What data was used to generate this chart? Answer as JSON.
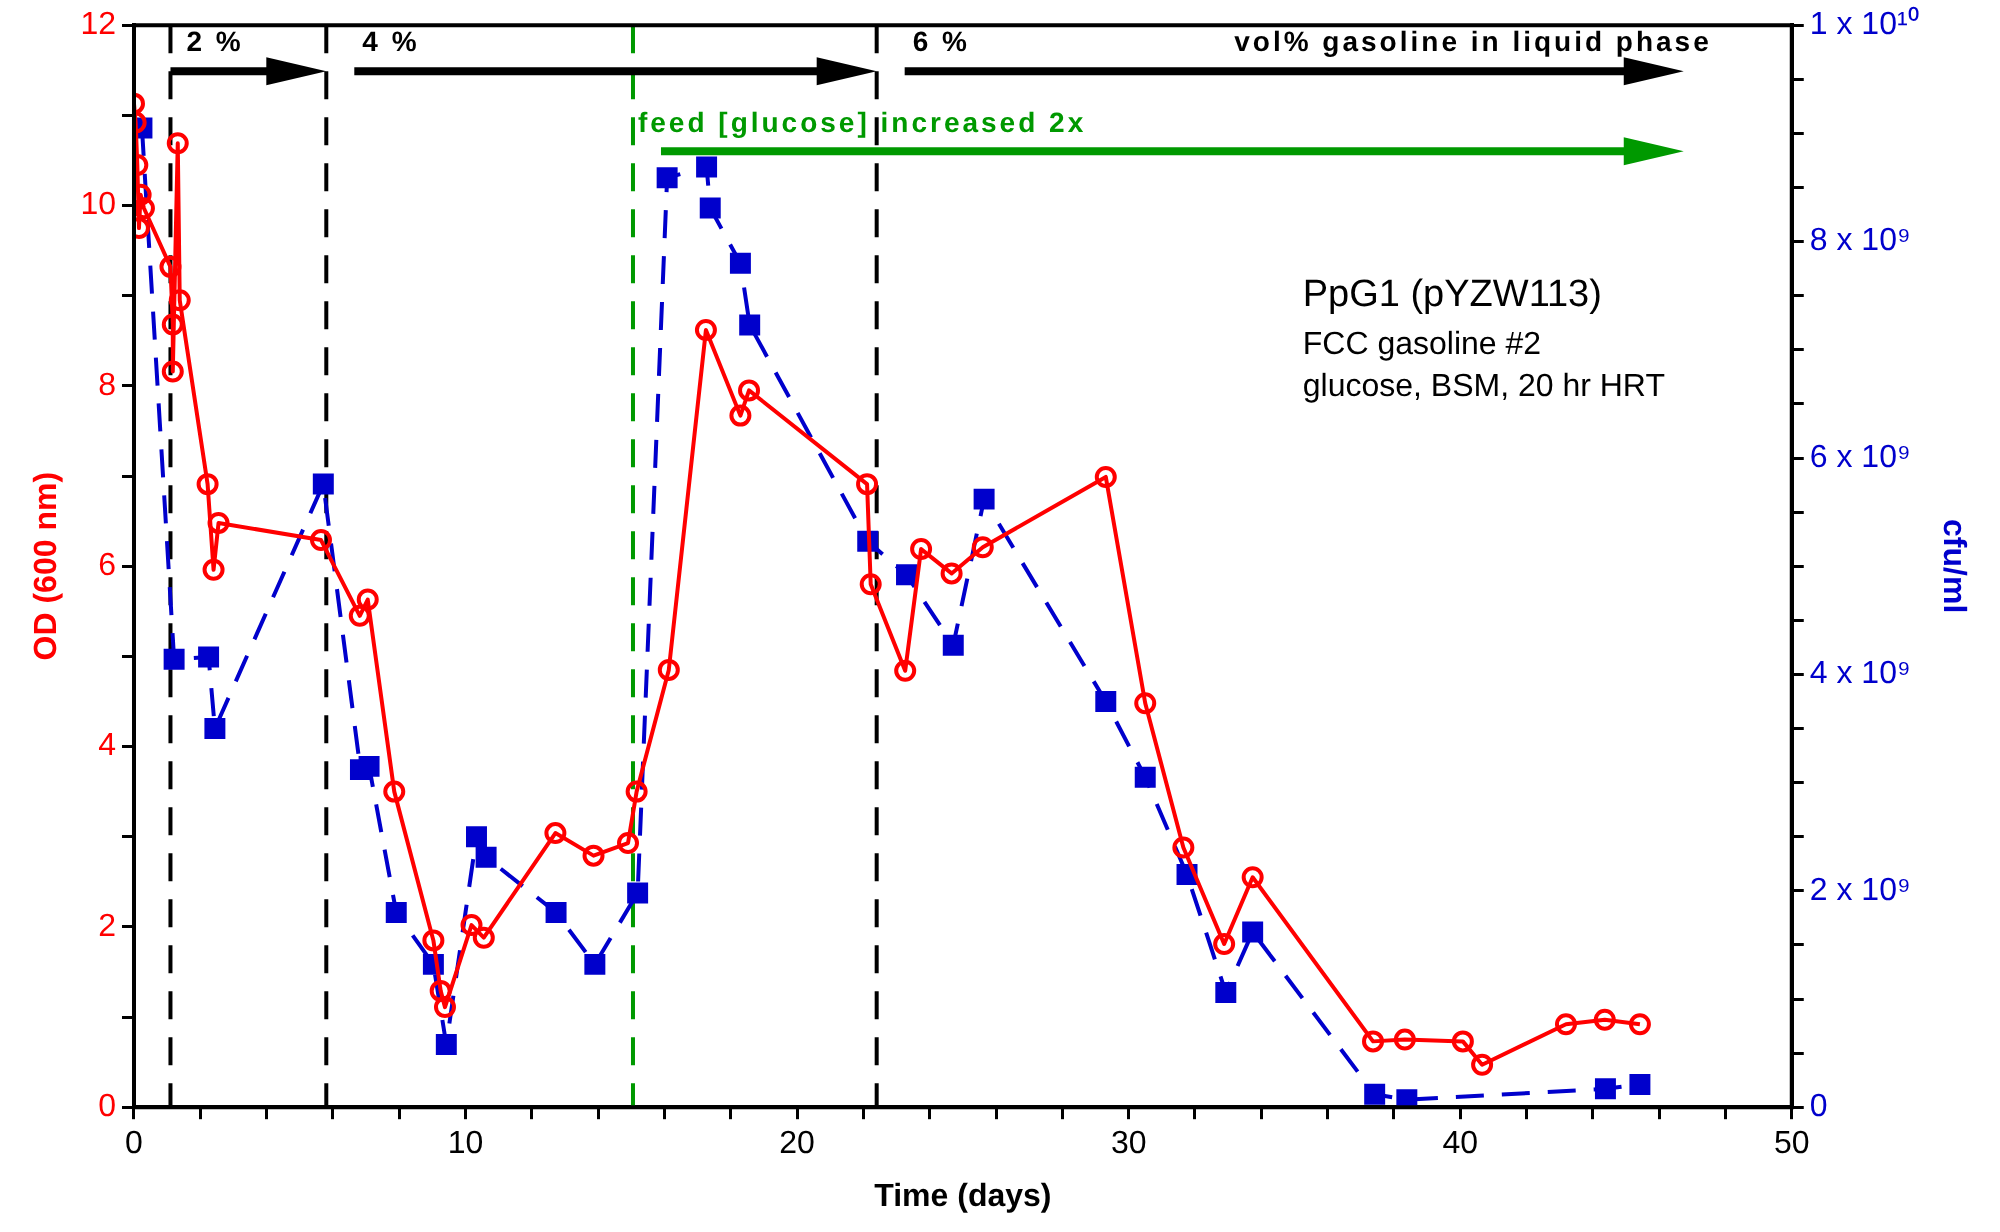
{
  "chart_data": {
    "type": "line",
    "xlabel": "Time (days)",
    "ylabel": "OD (600 nm)",
    "y2label": "cfu/ml",
    "xlim": [
      0,
      50
    ],
    "xticks": [
      0,
      {
        "value": 2,
        "label": null
      },
      {
        "value": 4,
        "label": null
      },
      {
        "value": 6,
        "label": null
      },
      {
        "value": 8,
        "label": null
      },
      10,
      {
        "value": 12,
        "label": null
      },
      {
        "value": 14,
        "label": null
      },
      {
        "value": 16,
        "label": null
      },
      {
        "value": 18,
        "label": null
      },
      20,
      {
        "value": 22,
        "label": null
      },
      {
        "value": 24,
        "label": null
      },
      {
        "value": 26,
        "label": null
      },
      {
        "value": 28,
        "label": null
      },
      30,
      {
        "value": 32,
        "label": null
      },
      {
        "value": 34,
        "label": null
      },
      {
        "value": 36,
        "label": null
      },
      {
        "value": 38,
        "label": null
      },
      40,
      {
        "value": 42,
        "label": null
      },
      {
        "value": 44,
        "label": null
      },
      {
        "value": 46,
        "label": null
      },
      {
        "value": 48,
        "label": null
      },
      50
    ],
    "ylim": [
      0,
      12
    ],
    "yticks": [
      0,
      {
        "value": 1,
        "label": null
      },
      2,
      {
        "value": 3,
        "label": null
      },
      4,
      {
        "value": 5,
        "label": null
      },
      6,
      {
        "value": 7,
        "label": null
      },
      8,
      {
        "value": 9,
        "label": null
      },
      10,
      {
        "value": 11,
        "label": null
      },
      12
    ],
    "y2lim": [
      0,
      10000000000
    ],
    "y2ticks": [
      {
        "value": 0,
        "label": "0"
      },
      {
        "value": 500000000,
        "label": null
      },
      {
        "value": 1000000000,
        "label": null
      },
      {
        "value": 1500000000,
        "label": null
      },
      {
        "value": 2000000000,
        "label": "2 x 10⁹"
      },
      {
        "value": 2500000000,
        "label": null
      },
      {
        "value": 3000000000,
        "label": null
      },
      {
        "value": 3500000000,
        "label": null
      },
      {
        "value": 4000000000,
        "label": "4 x 10⁹"
      },
      {
        "value": 4500000000,
        "label": null
      },
      {
        "value": 5000000000,
        "label": null
      },
      {
        "value": 5500000000,
        "label": null
      },
      {
        "value": 6000000000,
        "label": "6 x 10⁹"
      },
      {
        "value": 6500000000,
        "label": null
      },
      {
        "value": 7000000000,
        "label": null
      },
      {
        "value": 7500000000,
        "label": null
      },
      {
        "value": 8000000000,
        "label": "8 x 10⁹"
      },
      {
        "value": 8500000000,
        "label": null
      },
      {
        "value": 9000000000,
        "label": null
      },
      {
        "value": 9500000000,
        "label": null
      },
      {
        "value": 10000000000,
        "label": "1 x 10¹⁰"
      }
    ],
    "grid": false,
    "legend": false,
    "series": [
      {
        "color": "#ff0000",
        "marker": "circle",
        "line_style": "solid",
        "x": [
          0,
          0.05,
          0.1,
          0.15,
          0.2,
          0.3,
          1.1,
          1.17,
          1.17,
          1.32,
          1.38,
          2.22,
          2.4,
          2.55,
          5.64,
          6.81,
          7.05,
          7.85,
          9.03,
          9.25,
          9.38,
          10.18,
          10.55,
          12.71,
          13.86,
          14.9,
          15.16,
          16.13,
          17.25,
          18.29,
          18.55,
          22.11,
          22.22,
          23.26,
          23.74,
          24.66,
          25.6,
          29.31,
          30.5,
          31.65,
          32.88,
          33.74,
          37.37,
          38.33,
          40.08,
          40.66,
          43.19,
          44.36,
          45.42
        ],
        "values": [
          11.13,
          10.92,
          10.45,
          9.75,
          10.12,
          9.97,
          9.32,
          8.68,
          8.16,
          10.69,
          8.95,
          6.91,
          5.96,
          6.48,
          6.29,
          5.45,
          5.63,
          3.5,
          1.85,
          1.29,
          1.11,
          2.02,
          1.88,
          3.04,
          2.79,
          2.93,
          3.5,
          4.85,
          8.62,
          7.67,
          7.95,
          6.91,
          5.8,
          4.84,
          6.19,
          5.92,
          6.21,
          6.99,
          4.48,
          2.88,
          1.81,
          2.55,
          0.73,
          0.75,
          0.73,
          0.47,
          0.92,
          0.97,
          0.92
        ]
      },
      {
        "color": "#0000cc",
        "marker": "square",
        "line_style": "dashed",
        "axis": "y2",
        "x": [
          0.24,
          1.21,
          2.25,
          2.44,
          5.71,
          6.83,
          7.09,
          7.91,
          9.03,
          9.42,
          10.33,
          10.62,
          12.73,
          13.9,
          15.19,
          16.08,
          17.27,
          17.38,
          18.29,
          18.57,
          22.13,
          23.3,
          24.71,
          25.64,
          29.31,
          30.5,
          31.76,
          32.93,
          33.74,
          37.42,
          38.39,
          44.38,
          45.42
        ],
        "values": [
          9050000000,
          4140000000,
          4160000000,
          3500000000,
          5760000000,
          3120000000,
          3150000000,
          1800000000,
          1320000000,
          580000000,
          2500000000,
          2310000000,
          1800000000,
          1320000000,
          1980000000,
          8590000000,
          8690000000,
          8310000000,
          7800000000,
          7230000000,
          5230000000,
          4920000000,
          4270000000,
          5620000000,
          3750000000,
          3050000000,
          2150000000,
          1060000000,
          1620000000,
          120000000,
          70000000,
          170000000,
          210000000
        ]
      }
    ],
    "ref_lines": [
      {
        "axis": "x",
        "value": 1.1,
        "color": "#000000",
        "line_style": "dashed"
      },
      {
        "axis": "x",
        "value": 5.8,
        "color": "#000000",
        "line_style": "dashed"
      },
      {
        "axis": "x",
        "value": 15.05,
        "color": "#009900",
        "line_style": "dashed"
      },
      {
        "axis": "x",
        "value": 22.4,
        "color": "#000000",
        "line_style": "dashed"
      }
    ],
    "annotations": [
      "2 %",
      "4 %",
      "6 %",
      "vol% gasoline in liquid phase",
      {
        "text": "feed [glucose] increased 2x",
        "x": 15.2,
        "y": 10.9
      },
      "PpG1 (pYZW113)",
      "FCC gasoline #2",
      "glucose, BSM, 20 hr HRT"
    ]
  }
}
